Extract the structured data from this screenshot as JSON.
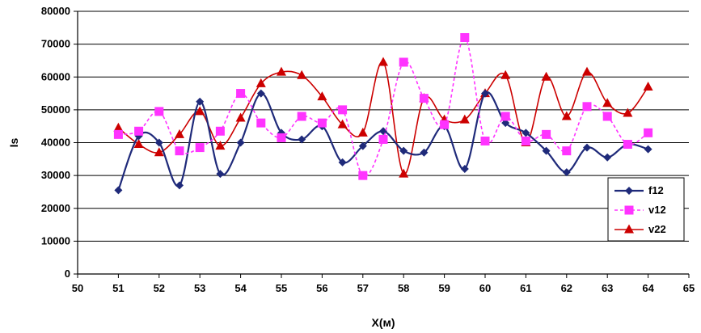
{
  "chart_data": {
    "type": "line",
    "title": "",
    "xlabel": "X(м)",
    "ylabel": "Is",
    "xlim": [
      50,
      65
    ],
    "ylim": [
      0,
      80000
    ],
    "xticks": [
      50,
      51,
      52,
      53,
      54,
      55,
      56,
      57,
      58,
      59,
      60,
      61,
      62,
      63,
      64,
      65
    ],
    "yticks": [
      0,
      10000,
      20000,
      30000,
      40000,
      50000,
      60000,
      70000,
      80000
    ],
    "grid": "horizontal",
    "legend_position": "right",
    "series": [
      {
        "name": "f12",
        "color": "#1f2a7a",
        "line": "solid",
        "marker": "diamond",
        "x": [
          51,
          51.5,
          52,
          52.5,
          53,
          53.5,
          54,
          54.5,
          55,
          55.5,
          56,
          56.5,
          57,
          57.5,
          58,
          58.5,
          59,
          59.5,
          60,
          60.5,
          61,
          61.5,
          62,
          62.5,
          63,
          63.5,
          64
        ],
        "y": [
          25500,
          42000,
          40000,
          27000,
          52500,
          30500,
          40000,
          55000,
          43000,
          41000,
          45000,
          34000,
          39000,
          43500,
          37500,
          37000,
          45000,
          32000,
          55000,
          46000,
          43000,
          37500,
          31000,
          38500,
          35500,
          39500,
          38000
        ]
      },
      {
        "name": "v12",
        "color": "#ff33ff",
        "line": "dashed",
        "marker": "square",
        "x": [
          51,
          51.5,
          52,
          52.5,
          53,
          53.5,
          54,
          54.5,
          55,
          55.5,
          56,
          56.5,
          57,
          57.5,
          58,
          58.5,
          59,
          59.5,
          60,
          60.5,
          61,
          61.5,
          62,
          62.5,
          63,
          63.5,
          64
        ],
        "y": [
          42500,
          43500,
          49500,
          37500,
          38500,
          43500,
          55000,
          46000,
          41500,
          48000,
          46000,
          50000,
          30000,
          41000,
          64500,
          53500,
          45500,
          72000,
          40500,
          48000,
          40500,
          42500,
          37500,
          51000,
          48000,
          39500,
          43000
        ]
      },
      {
        "name": "v22",
        "color": "#cc0000",
        "line": "solid",
        "marker": "triangle",
        "x": [
          51,
          51.5,
          52,
          52.5,
          53,
          53.5,
          54,
          54.5,
          55,
          55.5,
          56,
          56.5,
          57,
          57.5,
          58,
          58.5,
          59,
          59.5,
          60,
          60.5,
          61,
          61.5,
          62,
          62.5,
          63,
          63.5,
          64
        ],
        "y": [
          44500,
          39500,
          37000,
          42500,
          49500,
          39000,
          47500,
          58000,
          61500,
          60500,
          54000,
          45500,
          43000,
          64500,
          30500,
          53500,
          47000,
          47000,
          55000,
          60500,
          40000,
          60000,
          48000,
          61500,
          52000,
          49000,
          57000
        ]
      }
    ]
  }
}
